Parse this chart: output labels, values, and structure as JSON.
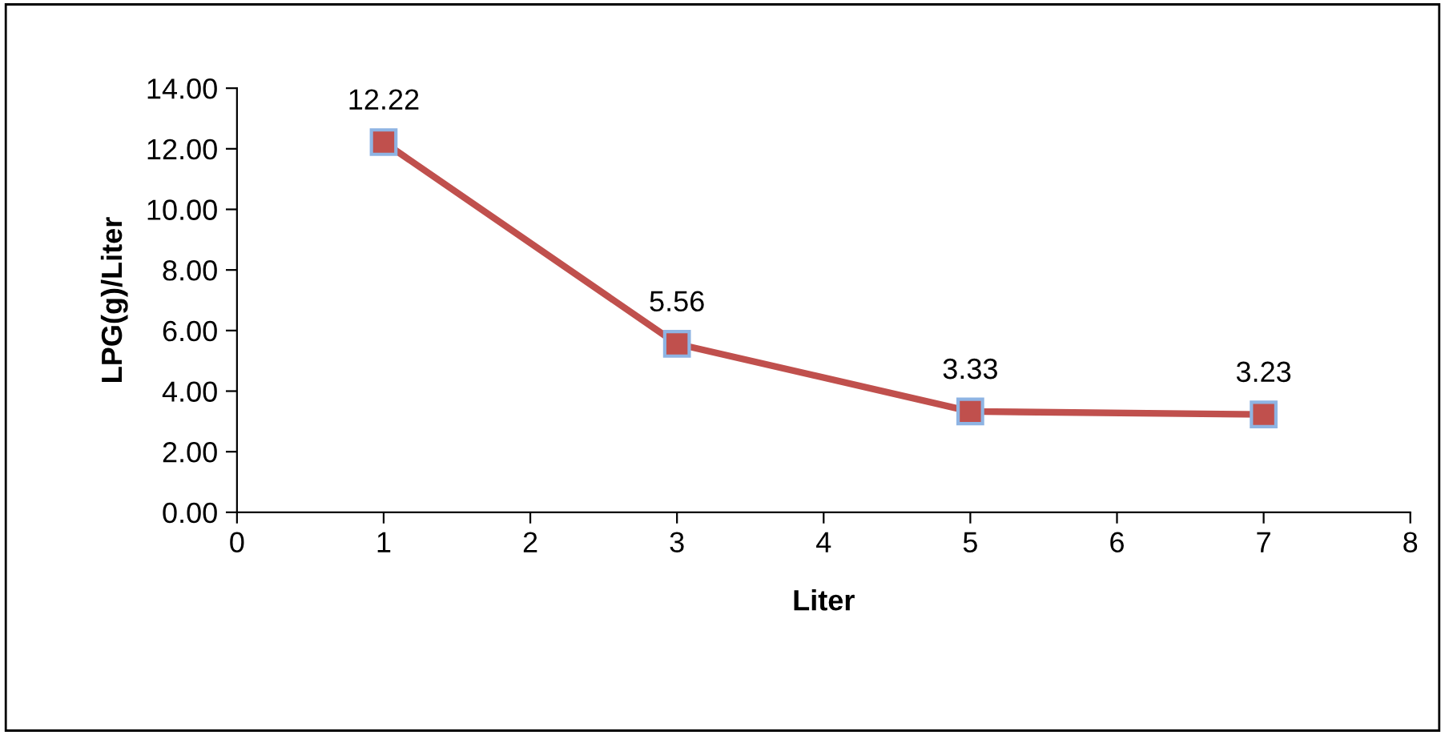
{
  "chart_data": {
    "type": "line",
    "xlabel": "Liter",
    "ylabel": "LPG(g)/Liter",
    "x": [
      1,
      3,
      5,
      7
    ],
    "series": [
      {
        "color": "#c0504d",
        "values": [
          12.22,
          5.56,
          3.33,
          3.23
        ]
      }
    ],
    "xlim": [
      0,
      8
    ],
    "xticks": [
      0,
      1,
      2,
      3,
      4,
      5,
      6,
      7,
      8
    ],
    "ylim": [
      0,
      14
    ],
    "yticks": [
      {
        "value": 0,
        "label": "0.00"
      },
      {
        "value": 2,
        "label": "2.00"
      },
      {
        "value": 4,
        "label": "4.00"
      },
      {
        "value": 6,
        "label": "6.00"
      },
      {
        "value": 8,
        "label": "8.00"
      },
      {
        "value": 10,
        "label": "10.00"
      },
      {
        "value": 12,
        "label": "12.00"
      },
      {
        "value": 14,
        "label": "14.00"
      }
    ],
    "marker": "square",
    "line_style": "solid",
    "data_labels": true,
    "grid": false
  }
}
